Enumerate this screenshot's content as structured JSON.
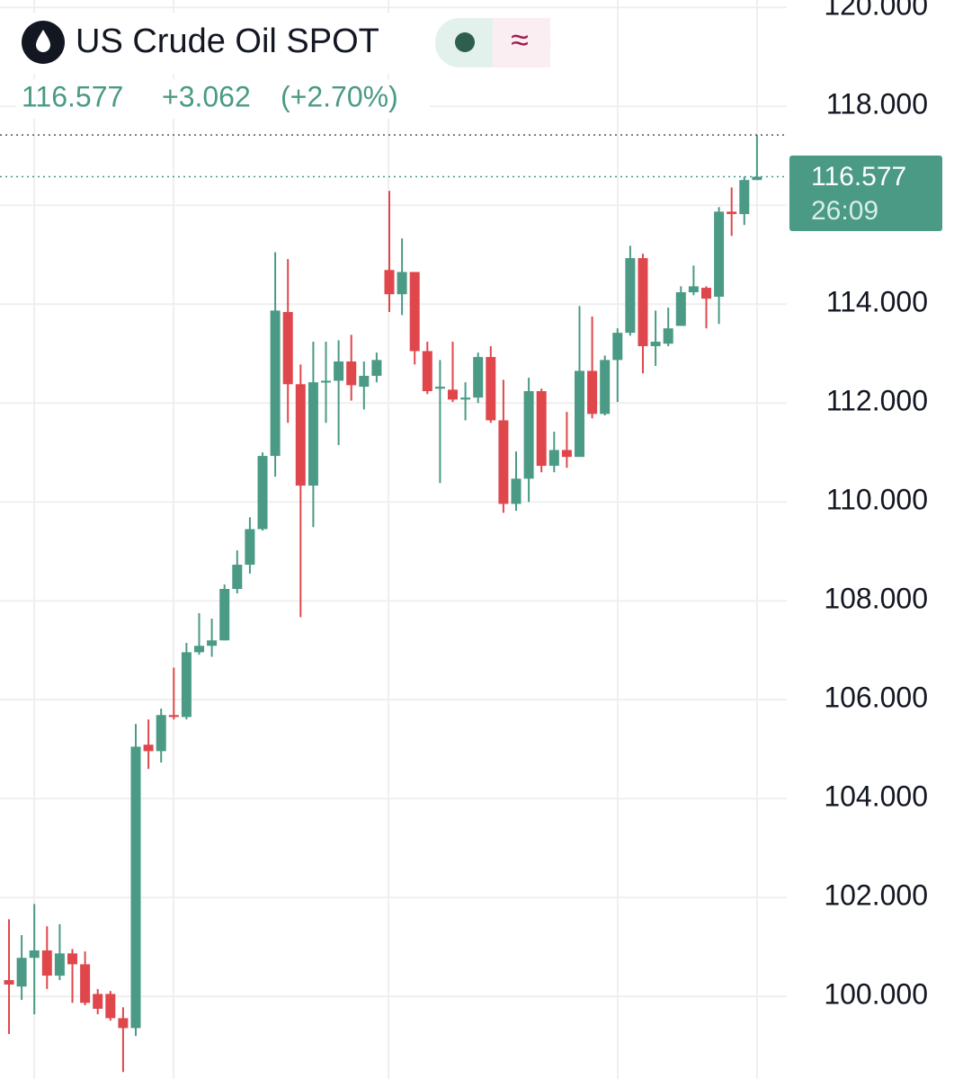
{
  "chart_data": {
    "type": "candlestick",
    "title": "US Crude Oil SPOT",
    "change": "+3.062",
    "change_percent": "(+2.70%)",
    "countdown": "26:09",
    "up_color": "#4a9a85",
    "down_color": "#e0474c",
    "grid": true,
    "ylim": [
      98.33,
      120.15
    ],
    "yticks": [
      {
        "value": 100,
        "label": "100.000"
      },
      {
        "value": 102,
        "label": "102.000"
      },
      {
        "value": 104,
        "label": "104.000"
      },
      {
        "value": 106,
        "label": "106.000"
      },
      {
        "value": 108,
        "label": "108.000"
      },
      {
        "value": 110,
        "label": "110.000"
      },
      {
        "value": 112,
        "label": "112.000"
      },
      {
        "value": 114,
        "label": "114.000"
      },
      {
        "value": 116,
        "label": "116.000"
      },
      {
        "value": 118,
        "label": "118.000"
      },
      {
        "value": 120,
        "label": "120.000"
      }
    ],
    "open": [
      100.33,
      100.2,
      100.78,
      100.93,
      100.42,
      100.87,
      100.65,
      100.05,
      100.05,
      99.56,
      99.36,
      105.09,
      104.96,
      105.69,
      105.65,
      106.96,
      107.09,
      107.2,
      108.24,
      108.73,
      109.45,
      110.93,
      113.84,
      112.38,
      110.33,
      112.42,
      112.45,
      112.84,
      112.33,
      112.55,
      114.69,
      114.2,
      114.65,
      113.05,
      112.29,
      112.27,
      112.07,
      112.11,
      112.93,
      111.65,
      109.96,
      110.47,
      112.24,
      110.73,
      111.05,
      110.91,
      112.65,
      111.78,
      112.87,
      113.42,
      114.93,
      113.15,
      113.2,
      113.56,
      114.24,
      114.33,
      114.15,
      115.87,
      115.82,
      116.51
    ],
    "high": [
      101.56,
      101.24,
      101.87,
      101.42,
      101.46,
      100.96,
      100.91,
      100.15,
      100.11,
      99.78,
      105.51,
      105.6,
      105.82,
      106.65,
      107.15,
      107.75,
      107.64,
      108.33,
      109.02,
      109.69,
      111.0,
      115.05,
      114.91,
      112.78,
      113.24,
      113.24,
      113.27,
      113.38,
      112.84,
      113.02,
      116.29,
      115.33,
      114.65,
      113.24,
      112.87,
      113.24,
      112.42,
      113.02,
      113.15,
      112.47,
      111.02,
      112.51,
      112.29,
      111.42,
      111.82,
      113.96,
      113.75,
      112.96,
      113.51,
      115.18,
      115.02,
      113.87,
      113.93,
      114.36,
      114.78,
      114.36,
      115.96,
      116.36,
      116.58,
      117.42
    ],
    "low": [
      99.24,
      99.93,
      99.64,
      100.15,
      100.33,
      99.87,
      99.82,
      99.64,
      99.51,
      98.47,
      99.2,
      104.6,
      104.73,
      105.6,
      105.6,
      106.91,
      106.87,
      107.2,
      108.15,
      108.55,
      109.42,
      110.51,
      111.6,
      107.67,
      109.49,
      111.6,
      111.15,
      112.05,
      111.87,
      112.42,
      113.84,
      113.78,
      112.78,
      112.18,
      110.38,
      112.02,
      111.65,
      112.0,
      111.6,
      109.78,
      109.82,
      110.0,
      110.6,
      110.6,
      110.69,
      110.91,
      111.69,
      111.75,
      112.02,
      113.36,
      112.6,
      112.75,
      113.15,
      113.56,
      114.18,
      113.51,
      113.6,
      115.38,
      115.6,
      116.51
    ],
    "close": [
      100.24,
      100.78,
      100.93,
      100.42,
      100.87,
      100.65,
      99.87,
      99.75,
      99.56,
      99.36,
      105.05,
      104.96,
      105.69,
      105.65,
      106.96,
      107.09,
      107.2,
      108.24,
      108.73,
      109.45,
      110.93,
      113.87,
      112.38,
      110.33,
      112.42,
      112.45,
      112.84,
      112.36,
      112.55,
      112.87,
      114.2,
      114.65,
      113.05,
      112.24,
      112.33,
      112.07,
      112.11,
      112.93,
      111.65,
      109.96,
      110.47,
      112.24,
      110.73,
      111.05,
      110.91,
      112.65,
      111.78,
      112.87,
      113.42,
      114.93,
      113.15,
      113.24,
      113.51,
      114.24,
      114.36,
      114.11,
      115.87,
      115.82,
      116.51,
      116.577
    ]
  }
}
